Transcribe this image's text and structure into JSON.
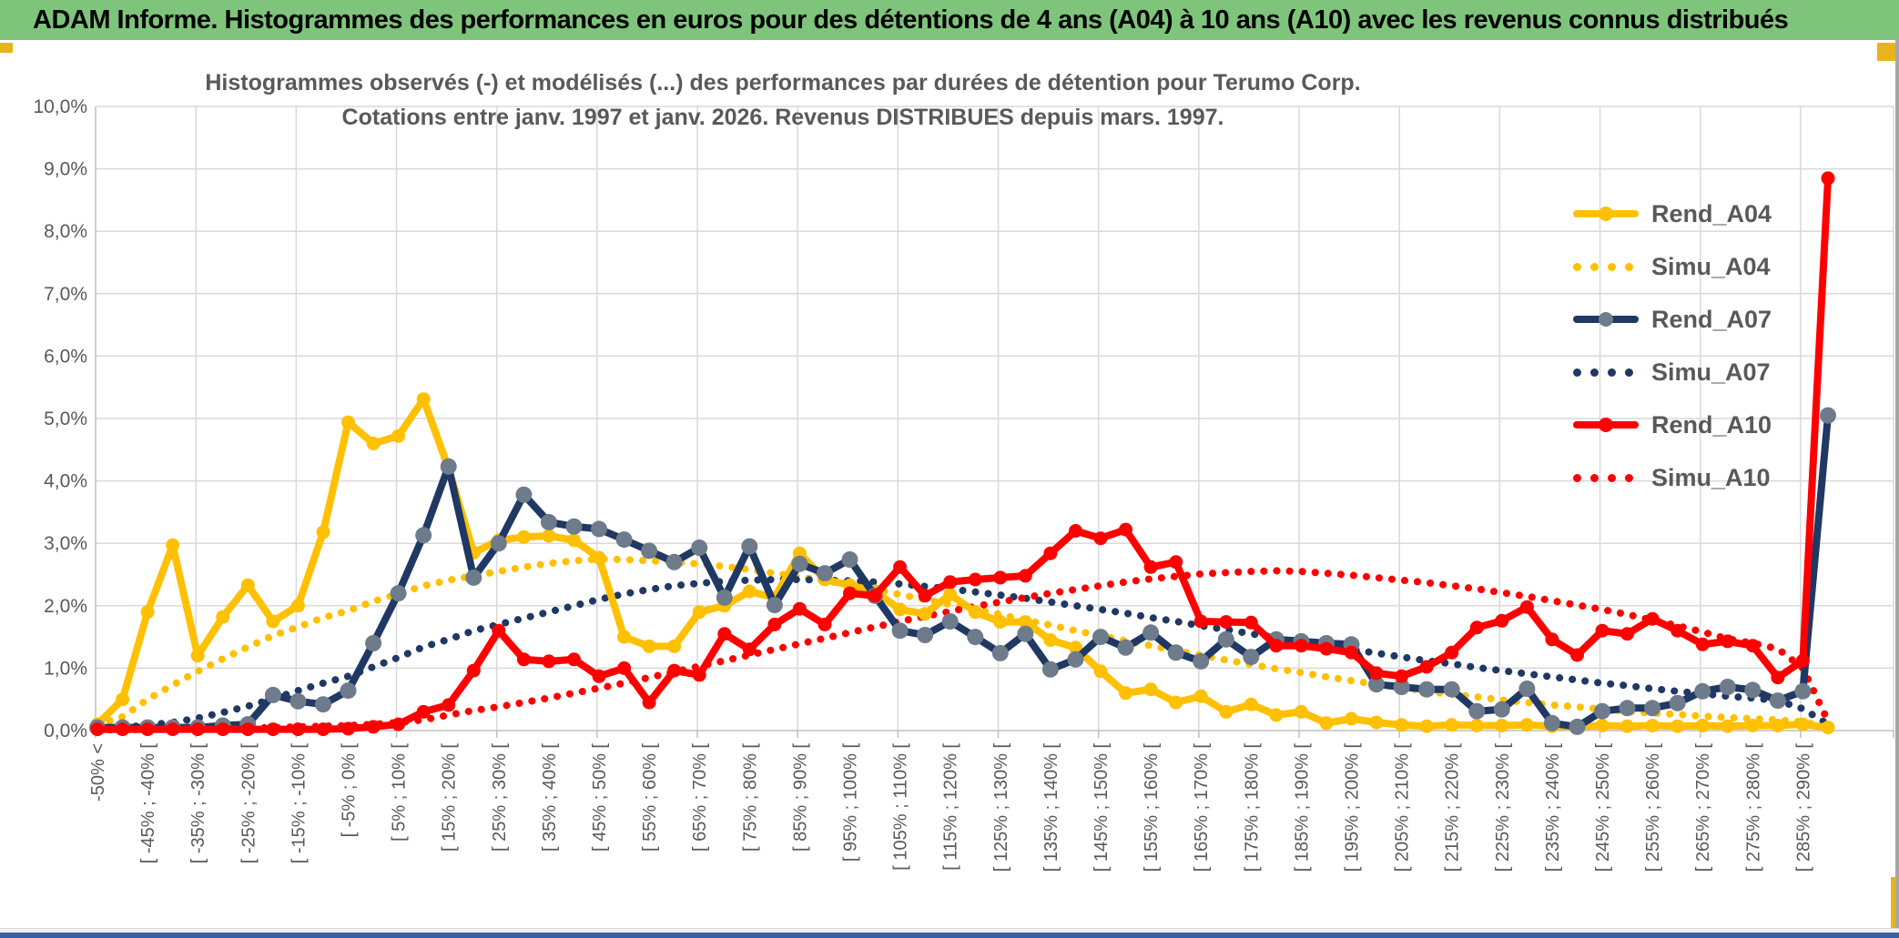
{
  "header": {
    "title": "ADAM Informe. Histogrammes des performances en euros pour des détentions de 4 ans (A04) à 10 ans (A10) avec les revenus connus distribués",
    "bg_color": "#7ec57b"
  },
  "window": {
    "accent_gold": "#e9b31d",
    "bottom_bar_color": "#3f5ea8",
    "right_border_color": "#a6a6a6"
  },
  "chart": {
    "title_line1": "Histogrammes observés (-) et modélisés (...) des performances par durées de détention pour Terumo Corp.",
    "title_line2": "Cotations entre janv. 1997 et janv. 2026. Revenus DISTRIBUES depuis mars. 1997.",
    "text_color": "#595959",
    "grid_color": "#d9d9d9",
    "axis_color": "#bfbfbf"
  },
  "chart_data": {
    "type": "line",
    "ylim": [
      0,
      10
    ],
    "grid": true,
    "legend_position": "right",
    "y_tick_labels": [
      "0,0%",
      "1,0%",
      "2,0%",
      "3,0%",
      "4,0%",
      "5,0%",
      "6,0%",
      "7,0%",
      "8,0%",
      "9,0%",
      "10,0%"
    ],
    "x_tick_labels": [
      "-50% <",
      "[ -45% ; -40% [",
      "[ -35% ; -30% [",
      "[ -25% ; -20% [",
      "[ -15% ; -10% [",
      "[ -5% ; 0% [",
      "[ 5% ; 10% [",
      "[ 15% ; 20% [",
      "[ 25% ; 30% [",
      "[ 35% ; 40% [",
      "[ 45% ; 50% [",
      "[ 55% ; 60% [",
      "[ 65% ; 70% [",
      "[ 75% ; 80% [",
      "[ 85% ; 90% [",
      "[ 95% ; 100% [",
      "[ 105% ; 110% [",
      "[ 115% ; 120% [",
      "[ 125% ; 130% [",
      "[ 135% ; 140% [",
      "[ 145% ; 150% [",
      "[ 155% ; 160% [",
      "[ 165% ; 170% [",
      "[ 175% ; 180% [",
      "[ 185% ; 190% [",
      "[ 195% ; 200% [",
      "[ 205% ; 210% [",
      "[ 215% ; 220% [",
      "[ 225% ; 230% [",
      "[ 235% ; 240% [",
      "[ 245% ; 250% [",
      "[ 255% ; 260% [",
      "[ 265% ; 270% [",
      "[ 275% ; 280% [",
      "[ 285% ; 290% ["
    ],
    "x_tick_every_n_points": 2,
    "points_per_series": 70,
    "series": [
      {
        "name": "Simu_A04",
        "style": "dotted",
        "color": "#ffc000",
        "marker": null,
        "values": [
          0.1,
          0.22,
          0.5,
          0.73,
          0.95,
          1.15,
          1.34,
          1.52,
          1.66,
          1.81,
          1.92,
          2.07,
          2.19,
          2.32,
          2.41,
          2.48,
          2.55,
          2.62,
          2.68,
          2.72,
          2.75,
          2.74,
          2.72,
          2.7,
          2.67,
          2.63,
          2.58,
          2.52,
          2.46,
          2.4,
          2.33,
          2.26,
          2.18,
          2.1,
          2.02,
          1.94,
          1.86,
          1.77,
          1.69,
          1.6,
          1.52,
          1.44,
          1.36,
          1.28,
          1.21,
          1.13,
          1.06,
          0.99,
          0.93,
          0.86,
          0.8,
          0.74,
          0.69,
          0.63,
          0.58,
          0.54,
          0.49,
          0.45,
          0.41,
          0.38,
          0.34,
          0.31,
          0.28,
          0.26,
          0.23,
          0.21,
          0.19,
          0.17,
          0.14,
          0.05
        ]
      },
      {
        "name": "Simu_A07",
        "style": "dotted",
        "color": "#1f3864",
        "marker": null,
        "values": [
          0.02,
          0.05,
          0.09,
          0.13,
          0.2,
          0.29,
          0.39,
          0.51,
          0.64,
          0.76,
          0.87,
          1.02,
          1.17,
          1.34,
          1.46,
          1.6,
          1.7,
          1.8,
          1.9,
          2.0,
          2.1,
          2.19,
          2.26,
          2.32,
          2.36,
          2.39,
          2.41,
          2.42,
          2.42,
          2.41,
          2.4,
          2.38,
          2.35,
          2.31,
          2.27,
          2.22,
          2.17,
          2.12,
          2.06,
          2.0,
          1.94,
          1.88,
          1.81,
          1.75,
          1.68,
          1.62,
          1.55,
          1.49,
          1.42,
          1.36,
          1.3,
          1.24,
          1.18,
          1.12,
          1.07,
          1.01,
          0.96,
          0.91,
          0.86,
          0.81,
          0.76,
          0.72,
          0.67,
          0.63,
          0.59,
          0.55,
          0.52,
          0.48,
          0.35,
          0.1
        ]
      },
      {
        "name": "Simu_A10",
        "style": "dotted",
        "color": "#ff0000",
        "marker": null,
        "values": [
          0.01,
          0.01,
          0.02,
          0.02,
          0.03,
          0.03,
          0.04,
          0.05,
          0.06,
          0.07,
          0.08,
          0.1,
          0.13,
          0.17,
          0.25,
          0.32,
          0.38,
          0.45,
          0.52,
          0.6,
          0.68,
          0.76,
          0.85,
          0.94,
          1.03,
          1.12,
          1.21,
          1.3,
          1.39,
          1.48,
          1.57,
          1.66,
          1.75,
          1.83,
          1.91,
          1.99,
          2.06,
          2.13,
          2.2,
          2.26,
          2.32,
          2.38,
          2.43,
          2.47,
          2.51,
          2.53,
          2.55,
          2.56,
          2.55,
          2.52,
          2.49,
          2.45,
          2.41,
          2.37,
          2.32,
          2.27,
          2.21,
          2.15,
          2.08,
          2.01,
          1.94,
          1.86,
          1.77,
          1.68,
          1.58,
          1.47,
          1.4,
          1.31,
          1.0,
          0.15
        ]
      },
      {
        "name": "Rend_A04",
        "style": "solid",
        "color": "#ffc000",
        "marker": "#ffc000",
        "values": [
          0.1,
          0.5,
          1.9,
          2.97,
          1.2,
          1.82,
          2.33,
          1.75,
          2.0,
          3.18,
          4.94,
          4.6,
          4.72,
          5.31,
          4.2,
          2.85,
          3.05,
          3.1,
          3.12,
          3.05,
          2.77,
          1.5,
          1.35,
          1.35,
          1.9,
          2.0,
          2.23,
          2.13,
          2.84,
          2.42,
          2.33,
          2.23,
          1.94,
          1.87,
          2.18,
          1.9,
          1.74,
          1.74,
          1.45,
          1.33,
          0.95,
          0.6,
          0.66,
          0.45,
          0.55,
          0.3,
          0.42,
          0.25,
          0.3,
          0.12,
          0.19,
          0.13,
          0.09,
          0.07,
          0.09,
          0.08,
          0.08,
          0.09,
          0.07,
          0.06,
          0.08,
          0.07,
          0.08,
          0.07,
          0.08,
          0.07,
          0.08,
          0.08,
          0.1,
          0.05
        ]
      },
      {
        "name": "Rend_A07",
        "style": "solid",
        "color": "#1f3864",
        "marker": "#6e7b8b",
        "values": [
          0.05,
          0.05,
          0.05,
          0.05,
          0.05,
          0.08,
          0.1,
          0.57,
          0.47,
          0.42,
          0.64,
          1.4,
          2.2,
          3.13,
          4.23,
          2.45,
          3.0,
          3.78,
          3.34,
          3.27,
          3.23,
          3.06,
          2.88,
          2.7,
          2.93,
          2.13,
          2.95,
          2.01,
          2.67,
          2.52,
          2.74,
          2.16,
          1.6,
          1.53,
          1.75,
          1.5,
          1.24,
          1.55,
          0.98,
          1.14,
          1.5,
          1.33,
          1.57,
          1.25,
          1.11,
          1.46,
          1.18,
          1.46,
          1.43,
          1.4,
          1.38,
          0.74,
          0.7,
          0.66,
          0.66,
          0.31,
          0.34,
          0.67,
          0.12,
          0.06,
          0.31,
          0.36,
          0.36,
          0.44,
          0.63,
          0.7,
          0.65,
          0.48,
          0.63,
          5.05
        ]
      },
      {
        "name": "Rend_A10",
        "style": "solid",
        "color": "#ff0000",
        "marker": "#ff0000",
        "values": [
          0.02,
          0.02,
          0.02,
          0.02,
          0.02,
          0.02,
          0.02,
          0.02,
          0.02,
          0.02,
          0.03,
          0.06,
          0.1,
          0.3,
          0.41,
          0.96,
          1.6,
          1.14,
          1.11,
          1.14,
          0.87,
          1.0,
          0.45,
          0.96,
          0.89,
          1.55,
          1.3,
          1.7,
          1.95,
          1.7,
          2.2,
          2.16,
          2.62,
          2.16,
          2.38,
          2.42,
          2.45,
          2.48,
          2.84,
          3.2,
          3.08,
          3.22,
          2.62,
          2.7,
          1.75,
          1.74,
          1.73,
          1.36,
          1.36,
          1.31,
          1.25,
          0.92,
          0.87,
          1.02,
          1.25,
          1.65,
          1.76,
          1.98,
          1.46,
          1.21,
          1.6,
          1.55,
          1.79,
          1.6,
          1.38,
          1.43,
          1.36,
          0.85,
          1.12,
          8.85
        ]
      }
    ],
    "legend_order": [
      "Rend_A04",
      "Simu_A04",
      "Rend_A07",
      "Simu_A07",
      "Rend_A10",
      "Simu_A10"
    ]
  }
}
